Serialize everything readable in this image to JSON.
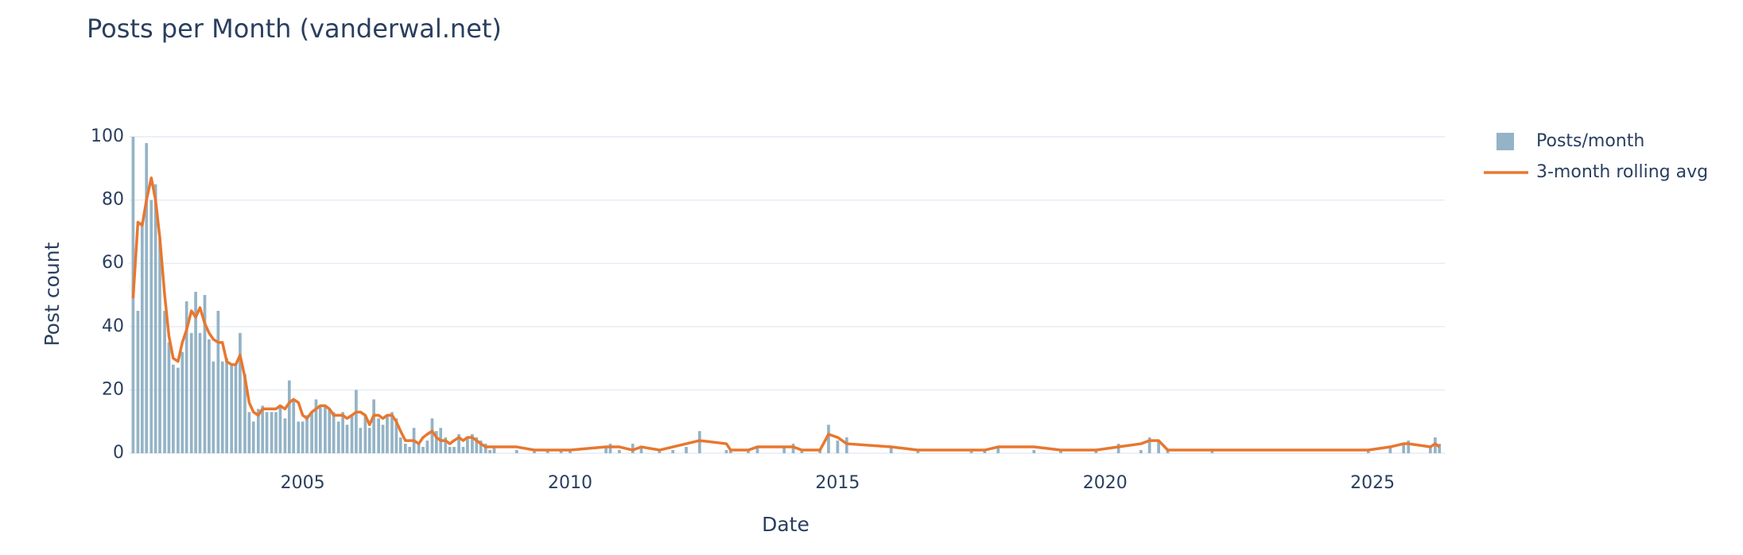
{
  "chart_data": {
    "type": "combo",
    "title": "Posts per Month (vanderwal.net)",
    "x_label": "Date",
    "y_label": "Post count",
    "x": [
      2001.83,
      2001.92,
      2002.0,
      2002.08,
      2002.17,
      2002.25,
      2002.33,
      2002.42,
      2002.5,
      2002.58,
      2002.67,
      2002.75,
      2002.83,
      2002.92,
      2003.0,
      2003.08,
      2003.17,
      2003.25,
      2003.33,
      2003.42,
      2003.5,
      2003.58,
      2003.67,
      2003.75,
      2003.83,
      2003.92,
      2004.0,
      2004.08,
      2004.17,
      2004.25,
      2004.33,
      2004.42,
      2004.5,
      2004.58,
      2004.67,
      2004.75,
      2004.83,
      2004.92,
      2005.0,
      2005.08,
      2005.17,
      2005.25,
      2005.33,
      2005.42,
      2005.5,
      2005.58,
      2005.67,
      2005.75,
      2005.83,
      2005.92,
      2006.0,
      2006.08,
      2006.17,
      2006.25,
      2006.33,
      2006.42,
      2006.5,
      2006.58,
      2006.67,
      2006.75,
      2006.83,
      2006.92,
      2007.0,
      2007.08,
      2007.17,
      2007.25,
      2007.33,
      2007.42,
      2007.5,
      2007.58,
      2007.67,
      2007.75,
      2007.83,
      2007.92,
      2008.0,
      2008.08,
      2008.17,
      2008.25,
      2008.33,
      2008.42,
      2008.5,
      2008.58,
      2009.0,
      2009.33,
      2009.58,
      2009.83,
      2010.0,
      2010.67,
      2010.75,
      2010.92,
      2011.17,
      2011.33,
      2011.67,
      2011.92,
      2012.17,
      2012.42,
      2012.92,
      2013.0,
      2013.33,
      2013.5,
      2014.0,
      2014.17,
      2014.33,
      2014.67,
      2014.83,
      2015.0,
      2015.17,
      2016.0,
      2016.5,
      2017.5,
      2017.75,
      2018.0,
      2018.67,
      2019.17,
      2019.83,
      2020.25,
      2020.67,
      2020.83,
      2021.0,
      2021.17,
      2022.0,
      2024.92,
      2025.33,
      2025.58,
      2025.67,
      2026.08,
      2026.17,
      2026.25
    ],
    "series": [
      {
        "name": "Posts/month",
        "type": "bar",
        "color": "#94b3c6",
        "values": [
          100,
          45,
          73,
          98,
          80,
          85,
          68,
          45,
          35,
          28,
          27,
          32,
          48,
          38,
          51,
          38,
          50,
          36,
          29,
          45,
          29,
          30,
          28,
          28,
          38,
          25,
          13,
          10,
          14,
          15,
          13,
          13,
          13,
          15,
          11,
          23,
          17,
          10,
          10,
          12,
          13,
          17,
          15,
          15,
          14,
          13,
          10,
          13,
          9,
          12,
          20,
          8,
          12,
          8,
          17,
          11,
          9,
          12,
          13,
          11,
          5,
          3,
          2,
          8,
          3,
          2,
          4,
          11,
          7,
          8,
          5,
          2,
          2,
          6,
          2,
          5,
          6,
          5,
          4,
          3,
          1,
          2,
          1,
          1,
          1,
          1,
          1,
          2,
          3,
          1,
          3,
          2,
          1,
          1,
          2,
          7,
          1,
          1,
          1,
          2,
          2,
          3,
          1,
          1,
          9,
          4,
          5,
          2,
          1,
          1,
          1,
          2,
          1,
          1,
          1,
          3,
          1,
          5,
          4,
          1,
          1,
          1,
          2,
          3,
          4,
          2,
          5,
          3
        ]
      },
      {
        "name": "3-month rolling avg",
        "type": "line",
        "color": "#e8772e",
        "values": [
          49,
          73,
          72,
          80,
          87,
          80,
          68,
          50,
          37,
          30,
          29,
          35,
          39,
          45,
          43,
          46,
          41,
          38,
          36,
          35,
          35,
          29,
          28,
          28,
          31,
          24,
          16,
          13,
          12,
          14,
          14,
          14,
          14,
          15,
          14,
          16,
          17,
          16,
          12,
          11,
          13,
          14,
          15,
          15,
          14,
          12,
          12,
          12,
          11,
          12,
          13,
          13,
          12,
          9,
          12,
          12,
          11,
          12,
          12,
          10,
          7,
          4,
          4,
          4,
          3,
          5,
          6,
          7,
          5,
          4,
          4,
          3,
          4,
          5,
          4,
          5,
          5,
          4,
          3,
          2,
          2,
          2,
          2,
          1,
          1,
          1,
          1,
          2,
          2,
          2,
          1,
          2,
          1,
          2,
          3,
          4,
          3,
          1,
          1,
          2,
          2,
          2,
          1,
          1,
          6,
          5,
          3,
          2,
          1,
          1,
          1,
          2,
          2,
          1,
          1,
          2,
          3,
          4,
          4,
          1,
          1,
          1,
          2,
          3,
          3,
          2,
          3,
          2
        ]
      }
    ],
    "xlim": [
      2001.75,
      2026.35
    ],
    "xticks": [
      2005,
      2010,
      2015,
      2020,
      2025
    ],
    "ylim": [
      0,
      100
    ],
    "yticks": [
      0,
      20,
      40,
      60,
      80,
      100
    ],
    "grid": true,
    "legend": "right"
  }
}
